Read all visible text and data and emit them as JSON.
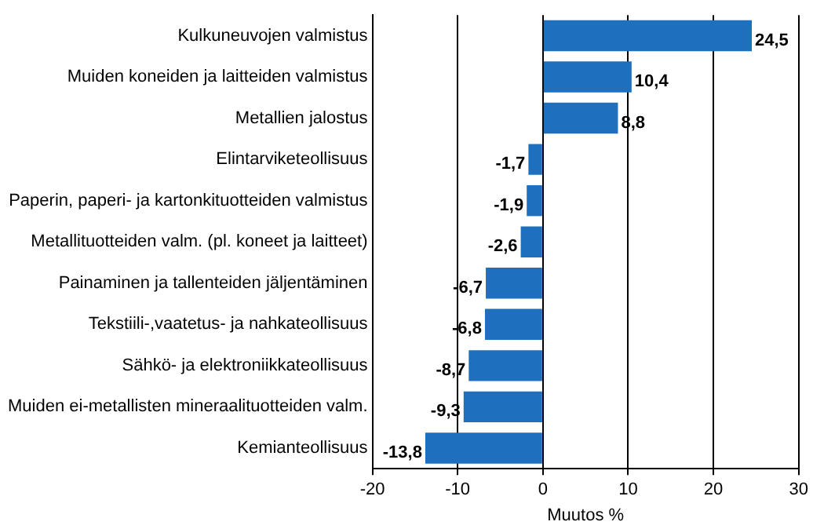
{
  "chart_data": {
    "type": "bar",
    "orientation": "horizontal",
    "xlabel": "Muutos %",
    "categories": [
      "Kulkuneuvojen valmistus",
      "Muiden koneiden ja laitteiden valmistus",
      "Metallien jalostus",
      "Elintarviketeollisuus",
      "Paperin, paperi- ja kartonkituotteiden valmistus",
      "Metallituotteiden valm. (pl. koneet ja laitteet)",
      "Painaminen ja tallenteiden jäljentäminen",
      "Tekstiili-,vaatetus- ja nahkateollisuus",
      "Sähkö- ja elektroniikkateollisuus",
      "Muiden ei-metallisten mineraalituotteiden valm.",
      "Kemianteollisuus"
    ],
    "values": [
      24.5,
      10.4,
      8.8,
      -1.7,
      -1.9,
      -2.6,
      -6.7,
      -6.8,
      -8.7,
      -9.3,
      -13.8
    ],
    "value_labels": [
      "24,5",
      "10,4",
      "8,8",
      "-1,7",
      "-1,9",
      "-2,6",
      "-6,7",
      "-6,8",
      "-8,7",
      "-9,3",
      "-13,8"
    ],
    "color": "#1f6fbf",
    "xlim": [
      -20,
      30
    ],
    "xticks": [
      -20,
      -10,
      0,
      10,
      20,
      30
    ],
    "grid": "x",
    "legend": false
  }
}
